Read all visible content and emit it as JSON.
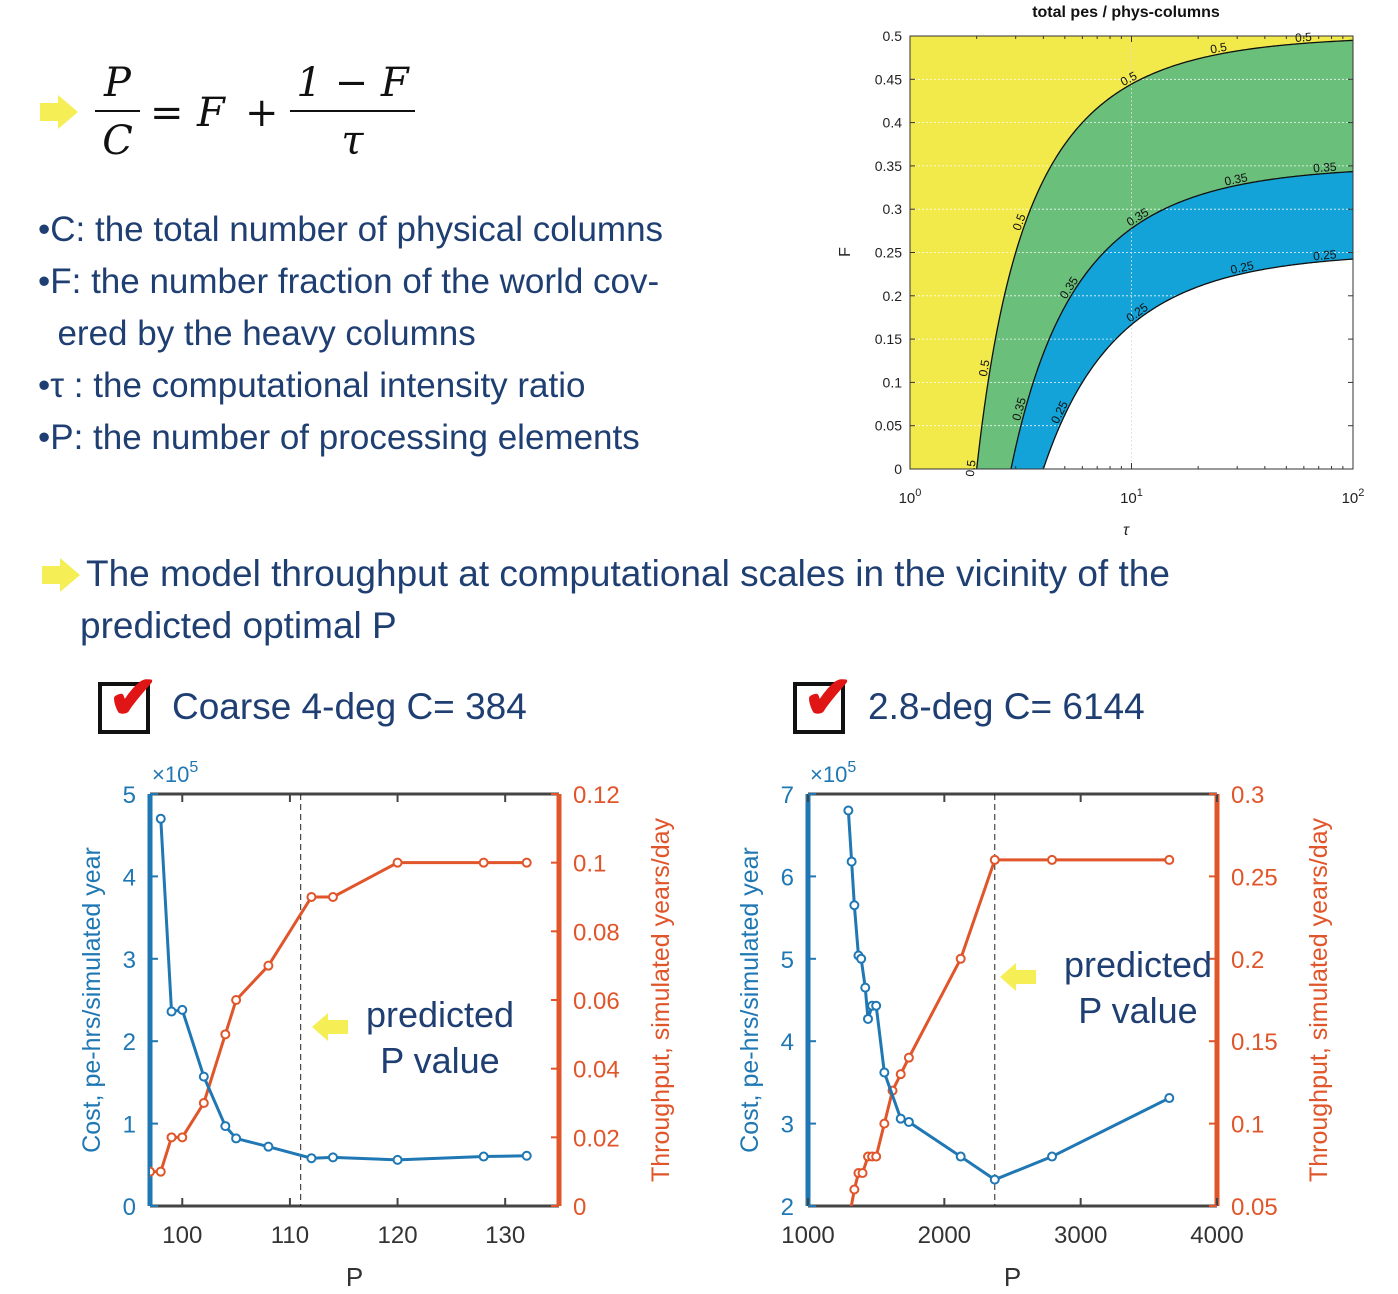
{
  "formula": {
    "lhs_num": "P",
    "lhs_den": "C",
    "eq": "=",
    "F": "F",
    "plus": "+",
    "rhs_num": "1 − F",
    "rhs_den": "τ"
  },
  "bullets": [
    "•C: the total number of physical columns",
    "•F: the number fraction of the world cov-",
    "  ered by the heavy columns",
    "•τ : the computational intensity ratio",
    "•P: the number of processing elements"
  ],
  "heading_line1": "The model throughput at computational scales in the vicinity of the",
  "heading_line2": "predicted optimal P",
  "case_left": "Coarse 4-deg C= 384",
  "case_right": "2.8-deg C= 6144",
  "annotation": {
    "line1": "predicted",
    "line2": "P value"
  },
  "colors": {
    "text": "#1f3f73",
    "cost": "#1f77b4",
    "throughput": "#e0552a",
    "yellow": "#f2ea4a",
    "green": "#6abf7b",
    "blue": "#13a3d8",
    "arrow": "#f5ee54",
    "check": "#e01515"
  },
  "chart_data": [
    {
      "type": "contour",
      "title": "total pes / phys-columns",
      "xlabel": "τ",
      "ylabel": "F",
      "xscale": "log",
      "xlim": [
        1,
        100
      ],
      "ylim": [
        0,
        0.5
      ],
      "x_ticks": [
        "10^0",
        "10^1",
        "10^2"
      ],
      "y_ticks": [
        "0",
        "0.05",
        "0.1",
        "0.15",
        "0.2",
        "0.25",
        "0.3",
        "0.35",
        "0.4",
        "0.45",
        "0.5"
      ],
      "levels": [
        0.25,
        0.35,
        0.5
      ],
      "level_labels": [
        "0.25",
        "0.35",
        "0.5"
      ],
      "grid": true
    },
    {
      "type": "line",
      "xlabel": "P",
      "ylabel_left": "Cost, pe-hrs/simulated year",
      "ylabel_right": "Throughput, simulated years/day",
      "left_exponent": "×10",
      "left_exponent_power": "5",
      "xlim": [
        97,
        135
      ],
      "x_ticks": [
        "100",
        "110",
        "120",
        "130"
      ],
      "left_ylim": [
        0,
        5
      ],
      "left_ticks": [
        "0",
        "1",
        "2",
        "3",
        "4",
        "5"
      ],
      "right_ylim": [
        0,
        0.12
      ],
      "right_ticks": [
        "0",
        "0.02",
        "0.04",
        "0.06",
        "0.08",
        "0.1",
        "0.12"
      ],
      "predicted_P": 111,
      "series": [
        {
          "x": [
            98,
            99,
            100,
            102,
            104,
            105,
            108,
            112,
            114,
            120,
            128,
            132
          ],
          "values": [
            4.7,
            2.36,
            2.38,
            1.57,
            0.97,
            0.82,
            0.72,
            0.58,
            0.59,
            0.56,
            0.6,
            0.61
          ]
        },
        {
          "x": [
            97,
            98,
            99,
            100,
            102,
            104,
            105,
            108,
            112,
            114,
            120,
            128,
            132
          ],
          "values": [
            0.01,
            0.01,
            0.02,
            0.02,
            0.03,
            0.05,
            0.06,
            0.07,
            0.09,
            0.09,
            0.1,
            0.1,
            0.1
          ]
        }
      ]
    },
    {
      "type": "line",
      "xlabel": "P",
      "ylabel_left": "Cost, pe-hrs/simulated year",
      "ylabel_right": "Throughput, simulated years/day",
      "left_exponent": "×10",
      "left_exponent_power": "5",
      "xlim": [
        1000,
        4000
      ],
      "x_ticks": [
        "1000",
        "2000",
        "3000",
        "4000"
      ],
      "left_ylim": [
        2,
        7
      ],
      "left_ticks": [
        "2",
        "3",
        "4",
        "5",
        "6",
        "7"
      ],
      "right_ylim": [
        0.05,
        0.3
      ],
      "right_ticks": [
        "0.05",
        "0.1",
        "0.15",
        "0.2",
        "0.25",
        "0.3"
      ],
      "predicted_P": 2370,
      "series": [
        {
          "x": [
            1296,
            1320,
            1340,
            1370,
            1390,
            1420,
            1440,
            1470,
            1500,
            1560,
            1680,
            1740,
            2120,
            2370,
            2790,
            3650
          ],
          "values": [
            6.8,
            6.18,
            5.65,
            5.04,
            5.0,
            4.65,
            4.27,
            4.43,
            4.43,
            3.62,
            3.06,
            3.02,
            2.6,
            2.32,
            2.6,
            3.31
          ]
        },
        {
          "x": [
            1296,
            1340,
            1370,
            1400,
            1440,
            1470,
            1500,
            1560,
            1620,
            1680,
            1740,
            2120,
            2370,
            2790,
            3650
          ],
          "values": [
            0.04,
            0.06,
            0.07,
            0.07,
            0.08,
            0.08,
            0.08,
            0.1,
            0.12,
            0.13,
            0.14,
            0.2,
            0.26,
            0.26,
            0.26
          ]
        }
      ]
    }
  ]
}
